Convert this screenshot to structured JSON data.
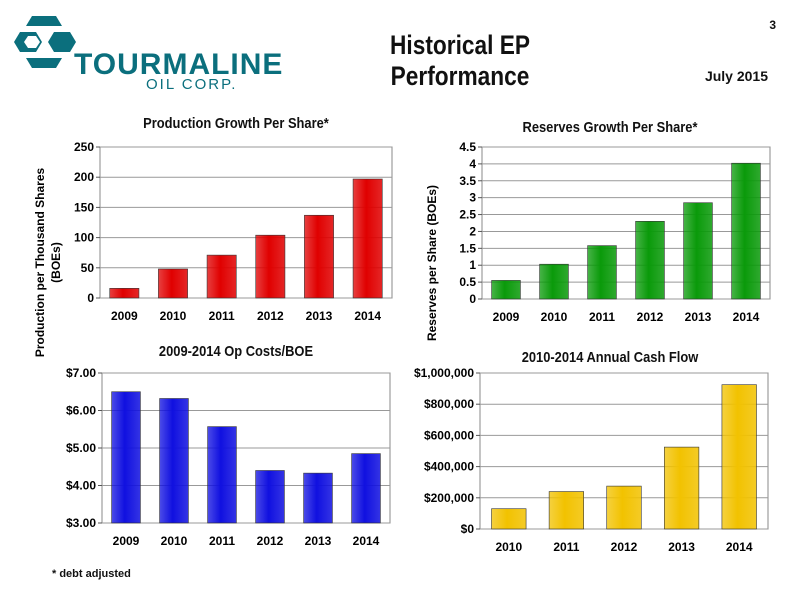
{
  "header": {
    "logo_word": "TOURMALINE",
    "logo_sub": "OIL CORP.",
    "title": "Historical EP Performance",
    "page_number": "3",
    "date": "July 2015"
  },
  "footnote": "* debt adjusted",
  "colors": {
    "red": "#e00000",
    "green": "#0a9a0a",
    "blue": "#1010e0",
    "gold": "#f2c200",
    "brand": "#0b6f7d"
  },
  "chart_data": [
    {
      "id": "production",
      "type": "bar",
      "title": "Production Growth Per Share*",
      "ylabel_lines": [
        "Production per Thousand Shares",
        "(BOEs)"
      ],
      "categories": [
        "2009",
        "2010",
        "2011",
        "2012",
        "2013",
        "2014"
      ],
      "values": [
        16,
        48,
        71,
        104,
        137,
        197
      ],
      "ylim": [
        0,
        250
      ],
      "yticks": [
        0,
        50,
        100,
        150,
        200,
        250
      ],
      "ytick_labels": [
        "0",
        "50",
        "100",
        "150",
        "200",
        "250"
      ],
      "color": "#e00000",
      "grid": true
    },
    {
      "id": "reserves",
      "type": "bar",
      "title": "Reserves Growth Per Share*",
      "ylabel_lines": [
        "Reserves per Share (BOEs)"
      ],
      "categories": [
        "2009",
        "2010",
        "2011",
        "2012",
        "2013",
        "2014"
      ],
      "values": [
        0.55,
        1.03,
        1.58,
        2.3,
        2.85,
        4.02
      ],
      "ylim": [
        0,
        4.5
      ],
      "yticks": [
        0,
        0.5,
        1,
        1.5,
        2,
        2.5,
        3,
        3.5,
        4,
        4.5
      ],
      "ytick_labels": [
        "0",
        "0.5",
        "1",
        "1.5",
        "2",
        "2.5",
        "3",
        "3.5",
        "4",
        "4.5"
      ],
      "color": "#0a9a0a",
      "grid": true
    },
    {
      "id": "opcosts",
      "type": "bar",
      "title": "2009-2014 Op Costs/BOE",
      "ylabel_lines": [],
      "categories": [
        "2009",
        "2010",
        "2011",
        "2012",
        "2013",
        "2014"
      ],
      "values": [
        6.5,
        6.32,
        5.57,
        4.4,
        4.33,
        4.85
      ],
      "ylim": [
        3,
        7
      ],
      "yticks": [
        3,
        4,
        5,
        6,
        7
      ],
      "ytick_labels": [
        "$3.00",
        "$4.00",
        "$5.00",
        "$6.00",
        "$7.00"
      ],
      "color": "#1010e0",
      "grid": true
    },
    {
      "id": "cashflow",
      "type": "bar",
      "title": "2010-2014 Annual Cash Flow",
      "ylabel_lines": [],
      "categories": [
        "2010",
        "2011",
        "2012",
        "2013",
        "2014"
      ],
      "values": [
        130000,
        240000,
        275000,
        525000,
        925000
      ],
      "ylim": [
        0,
        1000000
      ],
      "yticks": [
        0,
        200000,
        400000,
        600000,
        800000,
        1000000
      ],
      "ytick_labels": [
        "$0",
        "$200,000",
        "$400,000",
        "$600,000",
        "$800,000",
        "$1,000,000"
      ],
      "color": "#f2c200",
      "grid": true
    }
  ]
}
